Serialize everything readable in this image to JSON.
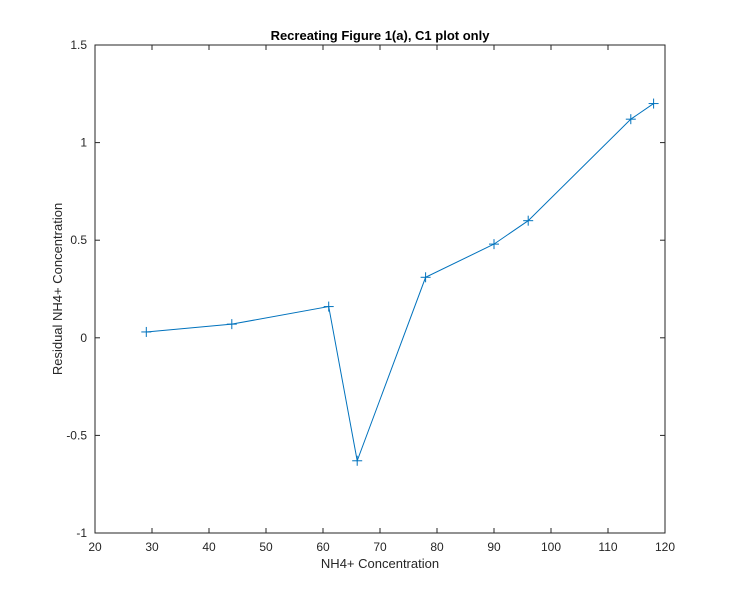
{
  "chart_data": {
    "type": "line",
    "title": "Recreating Figure 1(a), C1 plot only",
    "xlabel": "NH4+ Concentration",
    "ylabel": "Residual NH4+ Concentration",
    "xlim": [
      20,
      120
    ],
    "ylim": [
      -1,
      1.5
    ],
    "xticks": [
      "20",
      "30",
      "40",
      "50",
      "60",
      "70",
      "80",
      "90",
      "100",
      "110",
      "120"
    ],
    "yticks": [
      "-1",
      "-0.5",
      "0",
      "0.5",
      "1",
      "1.5"
    ],
    "grid": false,
    "marker": "+",
    "line_color": "#0072BD",
    "series": [
      {
        "x": [
          29,
          44,
          61,
          66,
          78,
          90,
          96,
          114,
          118
        ],
        "y": [
          0.03,
          0.07,
          0.16,
          -0.63,
          0.31,
          0.48,
          0.6,
          1.12,
          1.2
        ]
      }
    ]
  }
}
